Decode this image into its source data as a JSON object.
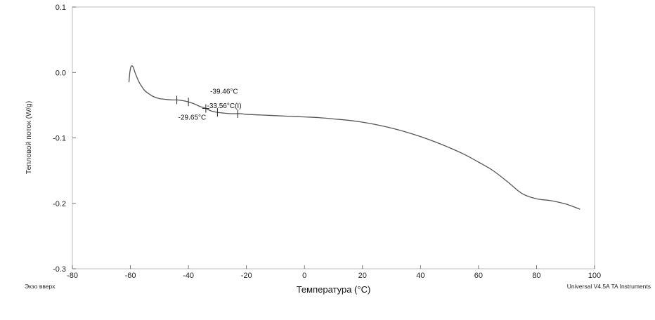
{
  "chart_data": {
    "type": "line",
    "xlabel": "Температура (°C)",
    "ylabel": "Тепловой поток (W/g)",
    "xlim": [
      -80,
      100
    ],
    "ylim": [
      -0.3,
      0.1
    ],
    "x_ticks": [
      "-80",
      "-60",
      "-40",
      "-20",
      "0",
      "20",
      "40",
      "60",
      "80",
      "100"
    ],
    "y_ticks": [
      "-0.3",
      "-0.2",
      "-0.1",
      "0.0",
      "0.1"
    ],
    "series": [
      {
        "x": [
          -60.5,
          -60.2,
          -59.8,
          -59.4,
          -59.0,
          -58.5,
          -57.8,
          -57.0,
          -56.0,
          -55.0,
          -53.5,
          -52.0,
          -50.0,
          -48.0,
          -46.0,
          -44.0,
          -42.0,
          -40.0,
          -38.0,
          -36.0,
          -34.0,
          -32.0,
          -30.0,
          -28.0,
          -25.0,
          -22.0,
          -20.0,
          -15.0,
          -10.0,
          -5.0,
          0.0,
          5.0,
          10.0,
          15.0,
          20.0,
          25.0,
          30.0,
          35.0,
          40.0,
          45.0,
          50.0,
          55.0,
          60.0,
          65.0,
          70.0,
          75.0,
          80.0,
          85.0,
          90.0,
          95.0
        ],
        "y": [
          -0.015,
          0.0,
          0.009,
          0.01,
          0.008,
          0.001,
          -0.007,
          -0.015,
          -0.022,
          -0.028,
          -0.033,
          -0.037,
          -0.04,
          -0.041,
          -0.042,
          -0.042,
          -0.043,
          -0.045,
          -0.048,
          -0.052,
          -0.055,
          -0.059,
          -0.061,
          -0.062,
          -0.063,
          -0.063,
          -0.064,
          -0.065,
          -0.066,
          -0.067,
          -0.068,
          -0.069,
          -0.071,
          -0.073,
          -0.076,
          -0.08,
          -0.085,
          -0.091,
          -0.098,
          -0.106,
          -0.115,
          -0.125,
          -0.137,
          -0.15,
          -0.167,
          -0.185,
          -0.193,
          -0.196,
          -0.201,
          -0.209
        ]
      }
    ],
    "markers": [
      -44,
      -40,
      -34,
      -30,
      -23
    ],
    "annotations": [
      {
        "text": "-39.46°C",
        "x": -32.5,
        "y": -0.029
      },
      {
        "text": "-33.56°C(I)",
        "x": -33.6,
        "y": -0.051
      },
      {
        "text": "-29.65°C",
        "x": -43.5,
        "y": -0.069
      }
    ],
    "footer_left": "Экзо вверх",
    "footer_right": "Universal V4.5A TA Instruments"
  }
}
